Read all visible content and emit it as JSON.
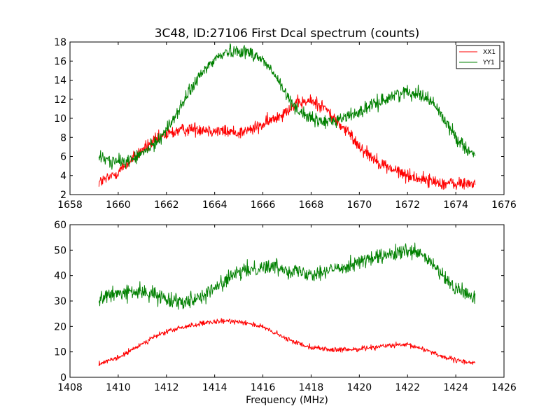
{
  "chart_data": [
    {
      "type": "line",
      "title": "3C48, ID:27106 First Dcal spectrum (counts)",
      "xlabel": "",
      "ylabel": "",
      "xlim": [
        1658,
        1676
      ],
      "ylim": [
        2,
        18
      ],
      "xticks": [
        "1658",
        "1660",
        "1662",
        "1664",
        "1666",
        "1668",
        "1670",
        "1672",
        "1674",
        "1676"
      ],
      "yticks": [
        "2",
        "4",
        "6",
        "8",
        "10",
        "12",
        "14",
        "16",
        "18"
      ],
      "legend_position": "top-right",
      "x_range": [
        1659.2,
        1674.8
      ],
      "series": [
        {
          "name": "XX1",
          "color": "#ff0000",
          "noise": 0.35,
          "x": [
            1659.2,
            1659.6,
            1660.0,
            1660.5,
            1661.0,
            1661.5,
            1662.0,
            1662.5,
            1663.0,
            1663.5,
            1664.0,
            1664.5,
            1665.0,
            1665.5,
            1666.0,
            1666.5,
            1667.0,
            1667.5,
            1668.0,
            1668.5,
            1669.0,
            1669.5,
            1670.0,
            1670.5,
            1671.0,
            1671.5,
            1672.0,
            1672.5,
            1673.0,
            1673.5,
            1674.0,
            1674.8
          ],
          "y": [
            3.3,
            3.7,
            4.4,
            5.5,
            6.7,
            7.6,
            8.3,
            8.7,
            8.9,
            8.9,
            8.7,
            8.6,
            8.5,
            8.8,
            9.3,
            10.0,
            10.9,
            11.6,
            11.8,
            11.3,
            9.8,
            8.6,
            7.1,
            6.0,
            5.1,
            4.5,
            4.0,
            3.7,
            3.4,
            3.2,
            3.1,
            3.2
          ]
        },
        {
          "name": "YY1",
          "color": "#008000",
          "noise": 0.35,
          "x": [
            1659.2,
            1659.6,
            1660.0,
            1660.5,
            1661.0,
            1661.5,
            1662.0,
            1662.5,
            1663.0,
            1663.5,
            1664.0,
            1664.5,
            1665.0,
            1665.5,
            1666.0,
            1666.5,
            1667.0,
            1667.5,
            1668.0,
            1668.5,
            1669.0,
            1669.5,
            1670.0,
            1670.5,
            1671.0,
            1671.5,
            1672.0,
            1672.5,
            1673.0,
            1673.5,
            1674.0,
            1674.8
          ],
          "y": [
            5.9,
            5.6,
            5.4,
            5.6,
            6.3,
            7.3,
            8.8,
            10.8,
            13.0,
            14.8,
            16.2,
            17.0,
            17.1,
            16.9,
            16.1,
            14.5,
            12.3,
            10.8,
            9.9,
            9.6,
            9.8,
            10.2,
            10.7,
            11.3,
            11.9,
            12.5,
            12.8,
            12.6,
            11.8,
            10.0,
            8.0,
            6.0
          ]
        }
      ]
    },
    {
      "type": "line",
      "title": "",
      "xlabel": "Frequency (MHz)",
      "ylabel": "",
      "xlim": [
        1408,
        1426
      ],
      "ylim": [
        0,
        60
      ],
      "xticks": [
        "1408",
        "1410",
        "1412",
        "1414",
        "1416",
        "1418",
        "1420",
        "1422",
        "1424",
        "1426"
      ],
      "yticks": [
        "0",
        "10",
        "20",
        "30",
        "40",
        "50",
        "60"
      ],
      "x_range": [
        1409.2,
        1424.8
      ],
      "series": [
        {
          "color": "#ff0000",
          "noise": 0.5,
          "x": [
            1409.2,
            1409.6,
            1410.0,
            1410.5,
            1411.0,
            1411.5,
            1412.0,
            1412.5,
            1413.0,
            1413.5,
            1414.0,
            1414.5,
            1415.0,
            1415.5,
            1416.0,
            1416.5,
            1417.0,
            1417.5,
            1418.0,
            1418.5,
            1419.0,
            1419.5,
            1420.0,
            1420.5,
            1421.0,
            1421.5,
            1422.0,
            1422.5,
            1423.0,
            1423.5,
            1424.0,
            1424.8
          ],
          "y": [
            5.5,
            6.3,
            7.7,
            10.3,
            13.3,
            15.9,
            17.9,
            19.2,
            20.4,
            21.1,
            21.7,
            22.1,
            22.0,
            21.1,
            19.7,
            17.4,
            15.0,
            13.3,
            11.9,
            11.2,
            10.7,
            10.8,
            11.2,
            11.8,
            12.3,
            12.6,
            12.6,
            11.6,
            10.0,
            8.0,
            6.6,
            5.6
          ]
        },
        {
          "color": "#008000",
          "noise": 1.5,
          "x": [
            1409.2,
            1409.6,
            1410.0,
            1410.5,
            1411.0,
            1411.5,
            1412.0,
            1412.5,
            1413.0,
            1413.5,
            1414.0,
            1414.5,
            1415.0,
            1415.5,
            1416.0,
            1416.5,
            1417.0,
            1417.5,
            1418.0,
            1418.5,
            1419.0,
            1419.5,
            1420.0,
            1420.5,
            1421.0,
            1421.5,
            1422.0,
            1422.5,
            1423.0,
            1423.5,
            1424.0,
            1424.8
          ],
          "y": [
            31.0,
            32.0,
            33.0,
            33.5,
            33.5,
            32.5,
            31.0,
            30.0,
            30.5,
            32.0,
            35.0,
            38.5,
            41.0,
            42.5,
            43.5,
            43.5,
            42.5,
            41.5,
            41.0,
            41.5,
            42.5,
            44.0,
            45.5,
            46.5,
            47.5,
            48.5,
            49.5,
            48.5,
            45.0,
            39.0,
            35.0,
            31.0
          ]
        }
      ]
    }
  ]
}
